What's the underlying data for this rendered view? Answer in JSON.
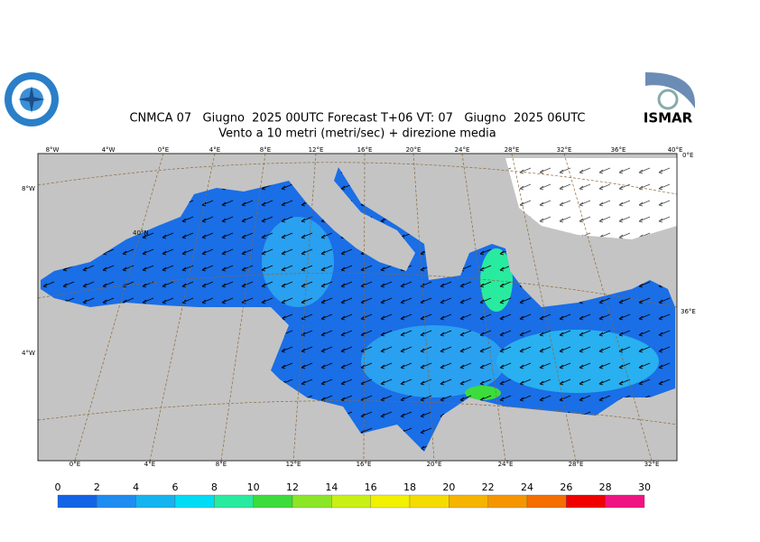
{
  "header": {
    "title": "CNMCA 07   Giugno  2025 00UTC Forecast T+06 VT: 07   Giugno  2025 06UTC",
    "subtitle": "Vento a 10 metri (metri/sec) + direzione media"
  },
  "logos": {
    "right_text": "ISMAR"
  },
  "map": {
    "top_labels": [
      "8°W",
      "4°W",
      "0°E",
      "4°E",
      "8°E",
      "12°E",
      "16°E",
      "20°E",
      "24°E",
      "28°E",
      "32°E",
      "36°E",
      "40°E"
    ],
    "bottom_labels": [
      "0°E",
      "4°E",
      "8°E",
      "12°E",
      "16°E",
      "20°E",
      "24°E",
      "28°E",
      "32°E"
    ],
    "left_labels": [
      "8°W",
      "4°W"
    ],
    "right_labels": [
      "0°E",
      "36°E"
    ],
    "inner_labels": [
      "40°N"
    ]
  },
  "colorbar": {
    "ticks": [
      0,
      2,
      4,
      6,
      8,
      10,
      12,
      14,
      16,
      18,
      20,
      22,
      24,
      26,
      28,
      30
    ],
    "colors": [
      "#1464e6",
      "#1e8cf0",
      "#14b4f0",
      "#00dcf5",
      "#28eba0",
      "#3cdc3c",
      "#8ce628",
      "#c8f014",
      "#f0f000",
      "#f5dc00",
      "#f5b400",
      "#f59600",
      "#f56e00",
      "#f00000",
      "#f01482"
    ]
  }
}
